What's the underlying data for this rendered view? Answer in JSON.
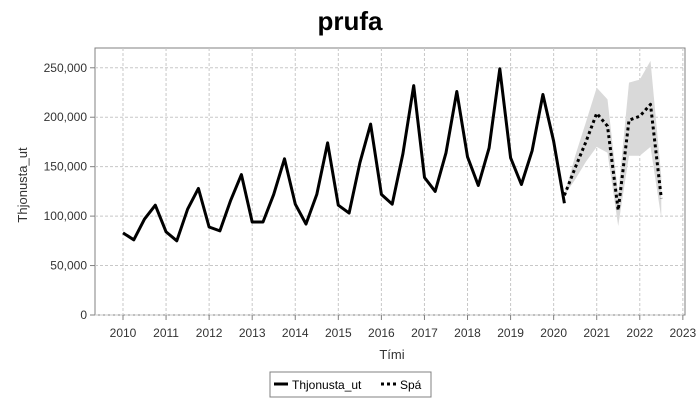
{
  "chart_data": {
    "type": "line",
    "title": "prufa",
    "xlabel": "Tími",
    "ylabel": "Thjonusta_ut",
    "xlim": [
      2009.35,
      2023.05
    ],
    "ylim": [
      0,
      270000
    ],
    "x_ticks": [
      2010,
      2011,
      2012,
      2013,
      2014,
      2015,
      2016,
      2017,
      2018,
      2019,
      2020,
      2021,
      2022,
      2023
    ],
    "x_tick_labels": [
      "2010",
      "2011",
      "2012",
      "2013",
      "2014",
      "2015",
      "2016",
      "2017",
      "2018",
      "2019",
      "2020",
      "2021",
      "2022",
      "2023"
    ],
    "y_ticks": [
      0,
      50000,
      100000,
      150000,
      200000,
      250000
    ],
    "y_tick_labels": [
      "0",
      "50,000",
      "100,000",
      "150,000",
      "200,000",
      "250,000"
    ],
    "grid": true,
    "legend_position": "bottom-center",
    "series": [
      {
        "name": "Thjonusta_ut",
        "style": "solid",
        "color": "#000000",
        "points": [
          [
            2010.0,
            83000
          ],
          [
            2010.25,
            76000
          ],
          [
            2010.5,
            97000
          ],
          [
            2010.75,
            111000
          ],
          [
            2011.0,
            84000
          ],
          [
            2011.25,
            75000
          ],
          [
            2011.5,
            107000
          ],
          [
            2011.75,
            128000
          ],
          [
            2012.0,
            89000
          ],
          [
            2012.25,
            85000
          ],
          [
            2012.5,
            116000
          ],
          [
            2012.75,
            142000
          ],
          [
            2013.0,
            94000
          ],
          [
            2013.25,
            94000
          ],
          [
            2013.5,
            122000
          ],
          [
            2013.75,
            158000
          ],
          [
            2014.0,
            112000
          ],
          [
            2014.25,
            92000
          ],
          [
            2014.5,
            122000
          ],
          [
            2014.75,
            174000
          ],
          [
            2015.0,
            111000
          ],
          [
            2015.25,
            103000
          ],
          [
            2015.5,
            154000
          ],
          [
            2015.75,
            193000
          ],
          [
            2016.0,
            122000
          ],
          [
            2016.25,
            112000
          ],
          [
            2016.5,
            163000
          ],
          [
            2016.75,
            232000
          ],
          [
            2017.0,
            139000
          ],
          [
            2017.25,
            125000
          ],
          [
            2017.5,
            164000
          ],
          [
            2017.75,
            226000
          ],
          [
            2018.0,
            160000
          ],
          [
            2018.25,
            131000
          ],
          [
            2018.5,
            169000
          ],
          [
            2018.75,
            249000
          ],
          [
            2019.0,
            159000
          ],
          [
            2019.25,
            132000
          ],
          [
            2019.5,
            166000
          ],
          [
            2019.75,
            223000
          ],
          [
            2020.0,
            176000
          ],
          [
            2020.25,
            113000
          ]
        ]
      },
      {
        "name": "Spá",
        "style": "dotted",
        "color": "#000000",
        "points": [
          [
            2020.25,
            121000
          ],
          [
            2020.5,
            149000
          ],
          [
            2020.75,
            175000
          ],
          [
            2021.0,
            204000
          ],
          [
            2021.25,
            191000
          ],
          [
            2021.5,
            106000
          ],
          [
            2021.75,
            197000
          ],
          [
            2022.0,
            201000
          ],
          [
            2022.25,
            213000
          ],
          [
            2022.5,
            118000
          ]
        ],
        "interval_lower": [
          121000,
          137000,
          155000,
          170000,
          164000,
          90000,
          161000,
          161000,
          170000,
          98000
        ],
        "interval_upper": [
          121000,
          161000,
          195000,
          230000,
          218000,
          122000,
          235000,
          238000,
          257000,
          140000
        ],
        "interval_color": "#d9d9d9"
      }
    ],
    "legend": [
      "Thjonusta_ut",
      "Spá"
    ]
  }
}
